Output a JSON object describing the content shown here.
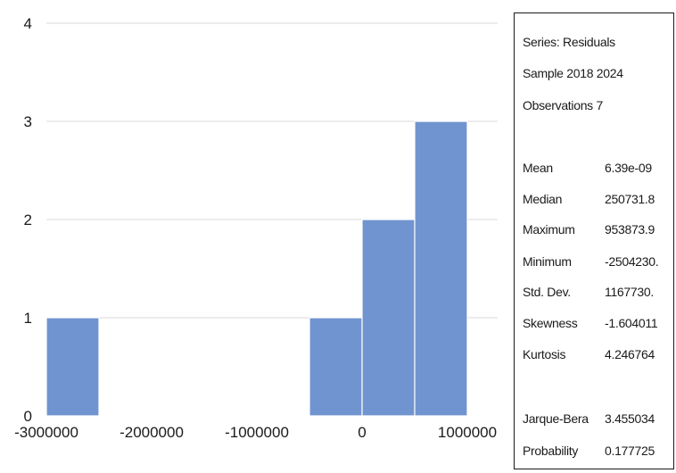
{
  "chart_data": {
    "type": "bar",
    "title": "",
    "xlabel": "",
    "ylabel": "",
    "bin_width": 500000,
    "bins": [
      {
        "start": -3000000,
        "end": -2500000,
        "count": 1
      },
      {
        "start": -2500000,
        "end": -2000000,
        "count": 0
      },
      {
        "start": -2000000,
        "end": -1500000,
        "count": 0
      },
      {
        "start": -1500000,
        "end": -1000000,
        "count": 0
      },
      {
        "start": -1000000,
        "end": -500000,
        "count": 0
      },
      {
        "start": -500000,
        "end": 0,
        "count": 1
      },
      {
        "start": 0,
        "end": 500000,
        "count": 2
      },
      {
        "start": 500000,
        "end": 1000000,
        "count": 3
      }
    ],
    "xlim": [
      -3000000,
      1000000
    ],
    "ylim": [
      0,
      4
    ],
    "x_ticks": [
      -3000000,
      -2000000,
      -1000000,
      0,
      1000000
    ],
    "x_tick_labels": [
      "-3000000",
      "-2000000",
      "-1000000",
      "0",
      "1000000"
    ],
    "y_ticks": [
      0,
      1,
      2,
      3,
      4
    ],
    "y_tick_labels": [
      "0",
      "1",
      "2",
      "3",
      "4"
    ],
    "grid": "horizontal",
    "colors": {
      "bar": "#7094cf",
      "grid": "#d9d9d9"
    }
  },
  "stats": {
    "header": [
      "Series: Residuals",
      "Sample 2018 2024",
      "Observations 7"
    ],
    "rows": [
      {
        "label": "Mean",
        "value": "6.39e-09"
      },
      {
        "label": "Median",
        "value": "250731.8"
      },
      {
        "label": "Maximum",
        "value": "953873.9"
      },
      {
        "label": "Minimum",
        "value": "-2504230."
      },
      {
        "label": "Std. Dev.",
        "value": "1167730."
      },
      {
        "label": "Skewness",
        "value": "-1.604011"
      },
      {
        "label": "Kurtosis",
        "value": "4.246764"
      }
    ],
    "tests": [
      {
        "label": "Jarque-Bera",
        "value": "3.455034"
      },
      {
        "label": "Probability",
        "value": "0.177725"
      }
    ]
  }
}
